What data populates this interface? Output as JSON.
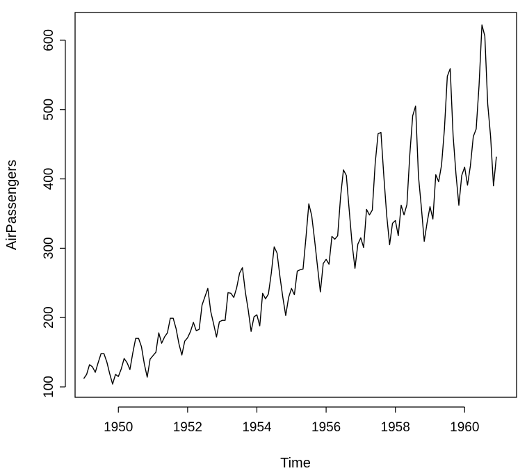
{
  "chart_data": {
    "type": "line",
    "title": "",
    "xlabel": "Time",
    "ylabel": "AirPassengers",
    "xlim": [
      1948.75,
      1961.5
    ],
    "ylim": [
      85,
      640
    ],
    "x_ticks": [
      1950,
      1952,
      1954,
      1956,
      1958,
      1960
    ],
    "y_ticks": [
      100,
      200,
      300,
      400,
      500,
      600
    ],
    "grid": false,
    "legend": "none",
    "line_color": "#000000",
    "x_start": 1949,
    "x_step": 0.08333333333333333,
    "series": [
      {
        "values": [
          112,
          118,
          132,
          129,
          121,
          135,
          148,
          148,
          136,
          119,
          104,
          118,
          115,
          126,
          141,
          135,
          125,
          149,
          170,
          170,
          158,
          133,
          114,
          140,
          145,
          150,
          178,
          163,
          172,
          178,
          199,
          199,
          184,
          162,
          146,
          166,
          171,
          180,
          193,
          181,
          183,
          218,
          230,
          242,
          209,
          191,
          172,
          194,
          196,
          196,
          236,
          235,
          229,
          243,
          264,
          272,
          237,
          211,
          180,
          201,
          204,
          188,
          235,
          227,
          234,
          264,
          302,
          293,
          259,
          229,
          203,
          229,
          242,
          233,
          267,
          269,
          270,
          315,
          364,
          347,
          312,
          274,
          237,
          278,
          284,
          277,
          317,
          313,
          318,
          374,
          413,
          405,
          355,
          306,
          271,
          306,
          315,
          301,
          356,
          348,
          355,
          422,
          465,
          467,
          404,
          347,
          305,
          336,
          340,
          318,
          362,
          348,
          363,
          435,
          491,
          505,
          404,
          359,
          310,
          337,
          360,
          342,
          406,
          396,
          420,
          472,
          548,
          559,
          463,
          407,
          362,
          405,
          417,
          391,
          419,
          461,
          472,
          535,
          622,
          606,
          508,
          461,
          390,
          432
        ]
      }
    ]
  }
}
